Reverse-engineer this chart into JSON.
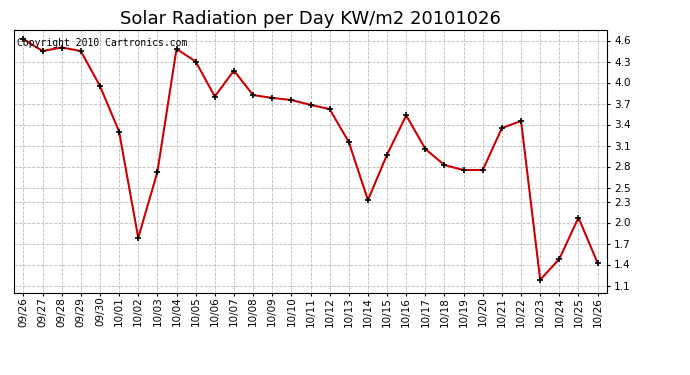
{
  "title": "Solar Radiation per Day KW/m2 20101026",
  "copyright": "Copyright 2010 Cartronics.com",
  "dates": [
    "09/26",
    "09/27",
    "09/28",
    "09/29",
    "09/30",
    "10/01",
    "10/02",
    "10/03",
    "10/04",
    "10/05",
    "10/06",
    "10/07",
    "10/08",
    "10/09",
    "10/10",
    "10/11",
    "10/12",
    "10/13",
    "10/14",
    "10/15",
    "10/16",
    "10/17",
    "10/18",
    "10/19",
    "10/20",
    "10/21",
    "10/22",
    "10/23",
    "10/24",
    "10/25",
    "10/26"
  ],
  "values": [
    4.62,
    4.45,
    4.5,
    4.45,
    3.95,
    3.3,
    1.78,
    2.72,
    4.48,
    4.3,
    3.8,
    4.17,
    3.82,
    3.78,
    3.75,
    3.68,
    3.62,
    3.15,
    2.32,
    2.97,
    3.53,
    3.05,
    2.82,
    2.75,
    2.75,
    3.35,
    3.45,
    1.18,
    1.48,
    2.07,
    1.42
  ],
  "line_color": "#cc0000",
  "marker_color": "#000000",
  "bg_color": "#ffffff",
  "plot_bg_color": "#ffffff",
  "grid_color": "#bbbbbb",
  "ylim_min": 1.0,
  "ylim_max": 4.75,
  "yticks": [
    1.1,
    1.4,
    1.7,
    2.0,
    2.3,
    2.5,
    2.8,
    3.1,
    3.4,
    3.7,
    4.0,
    4.3,
    4.6
  ],
  "title_fontsize": 13,
  "copyright_fontsize": 7,
  "tick_fontsize": 7.5
}
